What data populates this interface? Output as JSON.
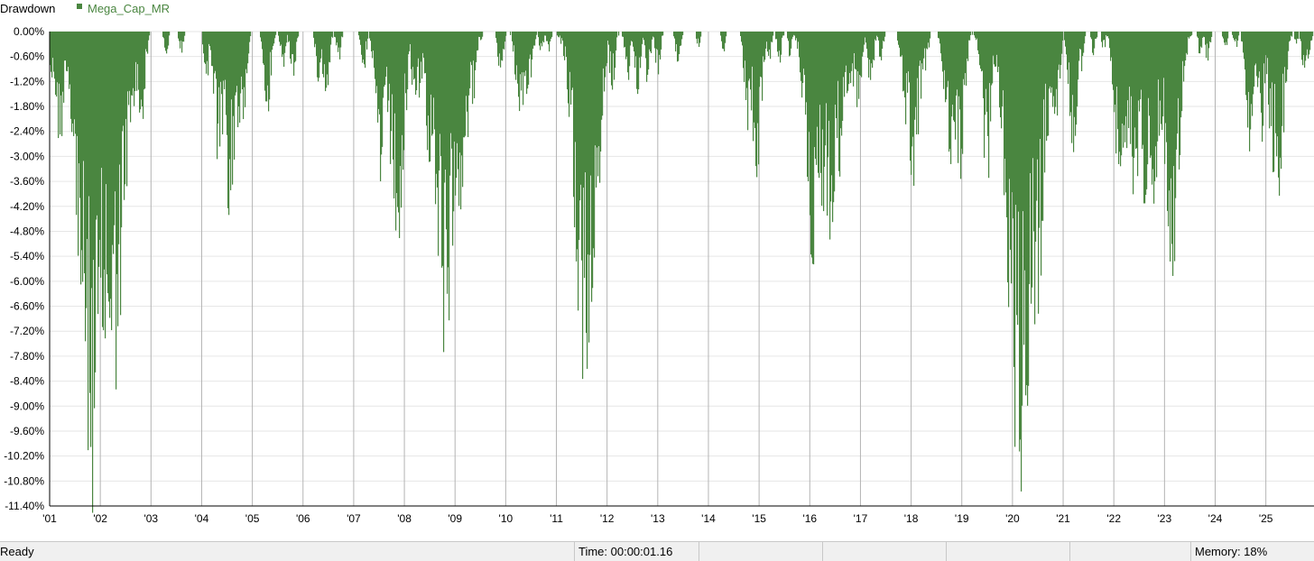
{
  "chart_data": {
    "type": "bar",
    "title": "Drawdown",
    "series": [
      {
        "name": "Mega_Cap_MR",
        "color": "#4a8640"
      }
    ],
    "ylim": [
      -12.0,
      0.0
    ],
    "y_ticks": [
      "0.00%",
      "-0.60%",
      "-1.20%",
      "-1.80%",
      "-2.40%",
      "-3.00%",
      "-3.60%",
      "-4.20%",
      "-4.80%",
      "-5.40%",
      "-6.00%",
      "-6.60%",
      "-7.20%",
      "-7.80%",
      "-8.40%",
      "-9.00%",
      "-9.60%",
      "-10.20%",
      "-10.80%",
      "-11.40%"
    ],
    "x_ticks": [
      "'01",
      "'02",
      "'03",
      "'04",
      "'05",
      "'06",
      "'07",
      "'08",
      "'09",
      "'10",
      "'11",
      "'12",
      "'13",
      "'14",
      "'15",
      "'16",
      "'17",
      "'18",
      "'19",
      "'20",
      "'21",
      "'22",
      "'23",
      "'24",
      "'25"
    ],
    "x_range": [
      2001.0,
      2025.95
    ],
    "grid": true,
    "drawdown_events": [
      [
        2001.05,
        1.4
      ],
      [
        2001.2,
        3.0
      ],
      [
        2001.5,
        3.2
      ],
      [
        2001.6,
        1.5
      ],
      [
        2001.85,
        11.6
      ],
      [
        2001.9,
        10.8
      ],
      [
        2002.0,
        8.5
      ],
      [
        2002.05,
        7.0
      ],
      [
        2002.15,
        6.5
      ],
      [
        2002.25,
        9.2
      ],
      [
        2002.3,
        7.1
      ],
      [
        2002.35,
        6.5
      ],
      [
        2002.45,
        4.8
      ],
      [
        2002.6,
        3.0
      ],
      [
        2002.8,
        2.6
      ],
      [
        2003.3,
        0.6
      ],
      [
        2003.6,
        0.6
      ],
      [
        2004.1,
        1.2
      ],
      [
        2004.35,
        3.5
      ],
      [
        2004.55,
        4.45
      ],
      [
        2004.75,
        2.6
      ],
      [
        2004.8,
        2.5
      ],
      [
        2005.3,
        2.0
      ],
      [
        2005.6,
        1.0
      ],
      [
        2005.8,
        1.3
      ],
      [
        2006.3,
        1.2
      ],
      [
        2006.45,
        1.8
      ],
      [
        2006.7,
        0.8
      ],
      [
        2007.2,
        1.0
      ],
      [
        2007.4,
        1.3
      ],
      [
        2007.55,
        4.0
      ],
      [
        2007.7,
        2.0
      ],
      [
        2007.85,
        5.4
      ],
      [
        2008.0,
        2.5
      ],
      [
        2008.2,
        1.8
      ],
      [
        2008.3,
        1.6
      ],
      [
        2008.5,
        3.3
      ],
      [
        2008.65,
        2.8
      ],
      [
        2008.8,
        7.8
      ],
      [
        2008.95,
        4.5
      ],
      [
        2009.1,
        4.3
      ],
      [
        2009.25,
        2.6
      ],
      [
        2009.35,
        1.8
      ],
      [
        2009.5,
        0.3
      ],
      [
        2009.9,
        1.2
      ],
      [
        2010.25,
        2.0
      ],
      [
        2010.35,
        2.8
      ],
      [
        2010.5,
        1.1
      ],
      [
        2010.7,
        0.6
      ],
      [
        2010.85,
        0.5
      ],
      [
        2011.2,
        0.4
      ],
      [
        2011.55,
        8.5
      ],
      [
        2011.6,
        6.2
      ],
      [
        2011.7,
        6.5
      ],
      [
        2011.8,
        3.5
      ],
      [
        2012.1,
        1.5
      ],
      [
        2012.4,
        1.3
      ],
      [
        2012.6,
        1.5
      ],
      [
        2012.8,
        1.3
      ],
      [
        2013.0,
        1.1
      ],
      [
        2013.4,
        0.9
      ],
      [
        2013.8,
        0.4
      ],
      [
        2014.3,
        0.5
      ],
      [
        2014.8,
        2.7
      ],
      [
        2014.95,
        3.5
      ],
      [
        2015.2,
        0.8
      ],
      [
        2015.4,
        0.8
      ],
      [
        2015.6,
        0.6
      ],
      [
        2015.8,
        0.5
      ],
      [
        2016.05,
        5.7
      ],
      [
        2016.25,
        4.4
      ],
      [
        2016.4,
        5.0
      ],
      [
        2016.6,
        3.5
      ],
      [
        2016.8,
        2.5
      ],
      [
        2016.95,
        2.0
      ],
      [
        2017.2,
        1.5
      ],
      [
        2017.4,
        0.8
      ],
      [
        2017.8,
        0.8
      ],
      [
        2017.9,
        2.5
      ],
      [
        2018.05,
        4.0
      ],
      [
        2018.2,
        1.8
      ],
      [
        2018.3,
        1.0
      ],
      [
        2018.75,
        3.4
      ],
      [
        2018.95,
        3.7
      ],
      [
        2019.5,
        3.7
      ],
      [
        2019.8,
        0.4
      ],
      [
        2020.15,
        11.1
      ],
      [
        2020.25,
        9.0
      ],
      [
        2020.35,
        8.0
      ],
      [
        2020.45,
        7.5
      ],
      [
        2020.6,
        4.0
      ],
      [
        2020.75,
        3.0
      ],
      [
        2020.85,
        2.4
      ],
      [
        2021.2,
        2.9
      ],
      [
        2021.35,
        1.0
      ],
      [
        2021.6,
        0.6
      ],
      [
        2021.8,
        0.5
      ],
      [
        2022.1,
        3.6
      ],
      [
        2022.2,
        4.7
      ],
      [
        2022.4,
        4.5
      ],
      [
        2022.6,
        4.2
      ],
      [
        2022.8,
        4.2
      ],
      [
        2022.95,
        2.4
      ],
      [
        2023.15,
        5.9
      ],
      [
        2023.4,
        1.0
      ],
      [
        2023.7,
        0.6
      ],
      [
        2023.85,
        0.8
      ],
      [
        2024.2,
        0.5
      ],
      [
        2024.4,
        0.5
      ],
      [
        2024.7,
        3.0
      ],
      [
        2024.9,
        2.8
      ],
      [
        2025.15,
        3.5
      ],
      [
        2025.25,
        4.1
      ],
      [
        2025.4,
        0.7
      ],
      [
        2025.6,
        0.4
      ],
      [
        2025.75,
        1.0
      ],
      [
        2025.85,
        0.7
      ]
    ]
  },
  "status_bar": {
    "ready": "Ready",
    "time": "Time: 00:00:01.16",
    "memory": "Memory: 18%"
  }
}
